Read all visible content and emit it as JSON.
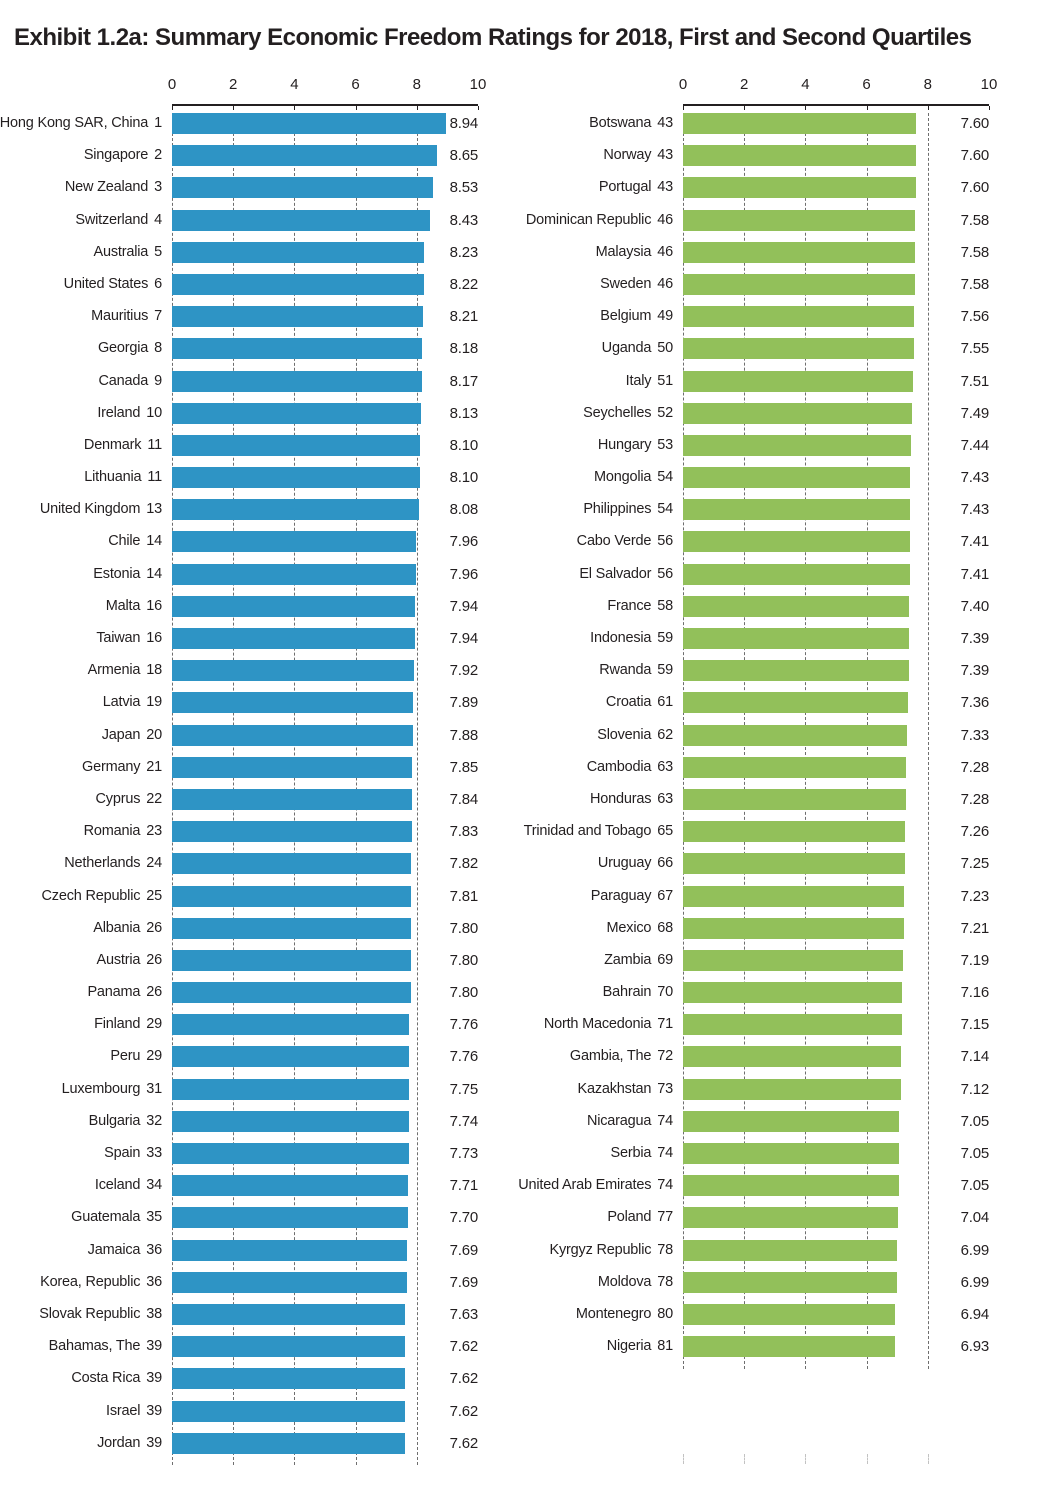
{
  "title": "Exhibit 1.2a: Summary Economic Freedom Ratings for 2018, First and Second Quartiles",
  "colors": {
    "bar_blue": "#2E94C5",
    "bar_green": "#92C05A",
    "text": "#231F20",
    "axis_line": "#231F20",
    "gridline": "#6E6E6E",
    "gridline_faint": "#C2C2C2"
  },
  "chart_data": {
    "type": "bar",
    "orientation": "horizontal",
    "title": "Exhibit 1.2a: Summary Economic Freedom Ratings for 2018, First and Second Quartiles",
    "xlim": [
      0,
      10
    ],
    "x_ticks": [
      0,
      2,
      4,
      6,
      8,
      10
    ],
    "gridlines_at": [
      0,
      2,
      4,
      6,
      8
    ],
    "grid_style": "dashed",
    "row_slots": 42,
    "panels": [
      {
        "name": "First Quartile",
        "bar_color": "#2E94C5",
        "rows": [
          {
            "country": "Hong Kong SAR, China",
            "rank": "1",
            "value": "8.94"
          },
          {
            "country": "Singapore",
            "rank": "2",
            "value": "8.65"
          },
          {
            "country": "New Zealand",
            "rank": "3",
            "value": "8.53"
          },
          {
            "country": "Switzerland",
            "rank": "4",
            "value": "8.43"
          },
          {
            "country": "Australia",
            "rank": "5",
            "value": "8.23"
          },
          {
            "country": "United States",
            "rank": "6",
            "value": "8.22"
          },
          {
            "country": "Mauritius",
            "rank": "7",
            "value": "8.21"
          },
          {
            "country": "Georgia",
            "rank": "8",
            "value": "8.18"
          },
          {
            "country": "Canada",
            "rank": "9",
            "value": "8.17"
          },
          {
            "country": "Ireland",
            "rank": "10",
            "value": "8.13"
          },
          {
            "country": "Denmark",
            "rank": "11",
            "value": "8.10"
          },
          {
            "country": "Lithuania",
            "rank": "11",
            "value": "8.10"
          },
          {
            "country": "United Kingdom",
            "rank": "13",
            "value": "8.08"
          },
          {
            "country": "Chile",
            "rank": "14",
            "value": "7.96"
          },
          {
            "country": "Estonia",
            "rank": "14",
            "value": "7.96"
          },
          {
            "country": "Malta",
            "rank": "16",
            "value": "7.94"
          },
          {
            "country": "Taiwan",
            "rank": "16",
            "value": "7.94"
          },
          {
            "country": "Armenia",
            "rank": "18",
            "value": "7.92"
          },
          {
            "country": "Latvia",
            "rank": "19",
            "value": "7.89"
          },
          {
            "country": "Japan",
            "rank": "20",
            "value": "7.88"
          },
          {
            "country": "Germany",
            "rank": "21",
            "value": "7.85"
          },
          {
            "country": "Cyprus",
            "rank": "22",
            "value": "7.84"
          },
          {
            "country": "Romania",
            "rank": "23",
            "value": "7.83"
          },
          {
            "country": "Netherlands",
            "rank": "24",
            "value": "7.82"
          },
          {
            "country": "Czech Republic",
            "rank": "25",
            "value": "7.81"
          },
          {
            "country": "Albania",
            "rank": "26",
            "value": "7.80"
          },
          {
            "country": "Austria",
            "rank": "26",
            "value": "7.80"
          },
          {
            "country": "Panama",
            "rank": "26",
            "value": "7.80"
          },
          {
            "country": "Finland",
            "rank": "29",
            "value": "7.76"
          },
          {
            "country": "Peru",
            "rank": "29",
            "value": "7.76"
          },
          {
            "country": "Luxembourg",
            "rank": "31",
            "value": "7.75"
          },
          {
            "country": "Bulgaria",
            "rank": "32",
            "value": "7.74"
          },
          {
            "country": "Spain",
            "rank": "33",
            "value": "7.73"
          },
          {
            "country": "Iceland",
            "rank": "34",
            "value": "7.71"
          },
          {
            "country": "Guatemala",
            "rank": "35",
            "value": "7.70"
          },
          {
            "country": "Jamaica",
            "rank": "36",
            "value": "7.69"
          },
          {
            "country": "Korea, Republic",
            "rank": "36",
            "value": "7.69"
          },
          {
            "country": "Slovak Republic",
            "rank": "38",
            "value": "7.63"
          },
          {
            "country": "Bahamas, The",
            "rank": "39",
            "value": "7.62"
          },
          {
            "country": "Costa Rica",
            "rank": "39",
            "value": "7.62"
          },
          {
            "country": "Israel",
            "rank": "39",
            "value": "7.62"
          },
          {
            "country": "Jordan",
            "rank": "39",
            "value": "7.62"
          }
        ]
      },
      {
        "name": "Second Quartile",
        "bar_color": "#92C05A",
        "rows": [
          {
            "country": "Botswana",
            "rank": "43",
            "value": "7.60"
          },
          {
            "country": "Norway",
            "rank": "43",
            "value": "7.60"
          },
          {
            "country": "Portugal",
            "rank": "43",
            "value": "7.60"
          },
          {
            "country": "Dominican Republic",
            "rank": "46",
            "value": "7.58"
          },
          {
            "country": "Malaysia",
            "rank": "46",
            "value": "7.58"
          },
          {
            "country": "Sweden",
            "rank": "46",
            "value": "7.58"
          },
          {
            "country": "Belgium",
            "rank": "49",
            "value": "7.56"
          },
          {
            "country": "Uganda",
            "rank": "50",
            "value": "7.55"
          },
          {
            "country": "Italy",
            "rank": "51",
            "value": "7.51"
          },
          {
            "country": "Seychelles",
            "rank": "52",
            "value": "7.49"
          },
          {
            "country": "Hungary",
            "rank": "53",
            "value": "7.44"
          },
          {
            "country": "Mongolia",
            "rank": "54",
            "value": "7.43"
          },
          {
            "country": "Philippines",
            "rank": "54",
            "value": "7.43"
          },
          {
            "country": "Cabo Verde",
            "rank": "56",
            "value": "7.41"
          },
          {
            "country": "El Salvador",
            "rank": "56",
            "value": "7.41"
          },
          {
            "country": "France",
            "rank": "58",
            "value": "7.40"
          },
          {
            "country": "Indonesia",
            "rank": "59",
            "value": "7.39"
          },
          {
            "country": "Rwanda",
            "rank": "59",
            "value": "7.39"
          },
          {
            "country": "Croatia",
            "rank": "61",
            "value": "7.36"
          },
          {
            "country": "Slovenia",
            "rank": "62",
            "value": "7.33"
          },
          {
            "country": "Cambodia",
            "rank": "63",
            "value": "7.28"
          },
          {
            "country": "Honduras",
            "rank": "63",
            "value": "7.28"
          },
          {
            "country": "Trinidad and Tobago",
            "rank": "65",
            "value": "7.26"
          },
          {
            "country": "Uruguay",
            "rank": "66",
            "value": "7.25"
          },
          {
            "country": "Paraguay",
            "rank": "67",
            "value": "7.23"
          },
          {
            "country": "Mexico",
            "rank": "68",
            "value": "7.21"
          },
          {
            "country": "Zambia",
            "rank": "69",
            "value": "7.19"
          },
          {
            "country": "Bahrain",
            "rank": "70",
            "value": "7.16"
          },
          {
            "country": "North Macedonia",
            "rank": "71",
            "value": "7.15"
          },
          {
            "country": "Gambia, The",
            "rank": "72",
            "value": "7.14"
          },
          {
            "country": "Kazakhstan",
            "rank": "73",
            "value": "7.12"
          },
          {
            "country": "Nicaragua",
            "rank": "74",
            "value": "7.05"
          },
          {
            "country": "Serbia",
            "rank": "74",
            "value": "7.05"
          },
          {
            "country": "United Arab Emirates",
            "rank": "74",
            "value": "7.05"
          },
          {
            "country": "Poland",
            "rank": "77",
            "value": "7.04"
          },
          {
            "country": "Kyrgyz Republic",
            "rank": "78",
            "value": "6.99"
          },
          {
            "country": "Moldova",
            "rank": "78",
            "value": "6.99"
          },
          {
            "country": "Montenegro",
            "rank": "80",
            "value": "6.94"
          },
          {
            "country": "Nigeria",
            "rank": "81",
            "value": "6.93"
          }
        ]
      }
    ]
  }
}
